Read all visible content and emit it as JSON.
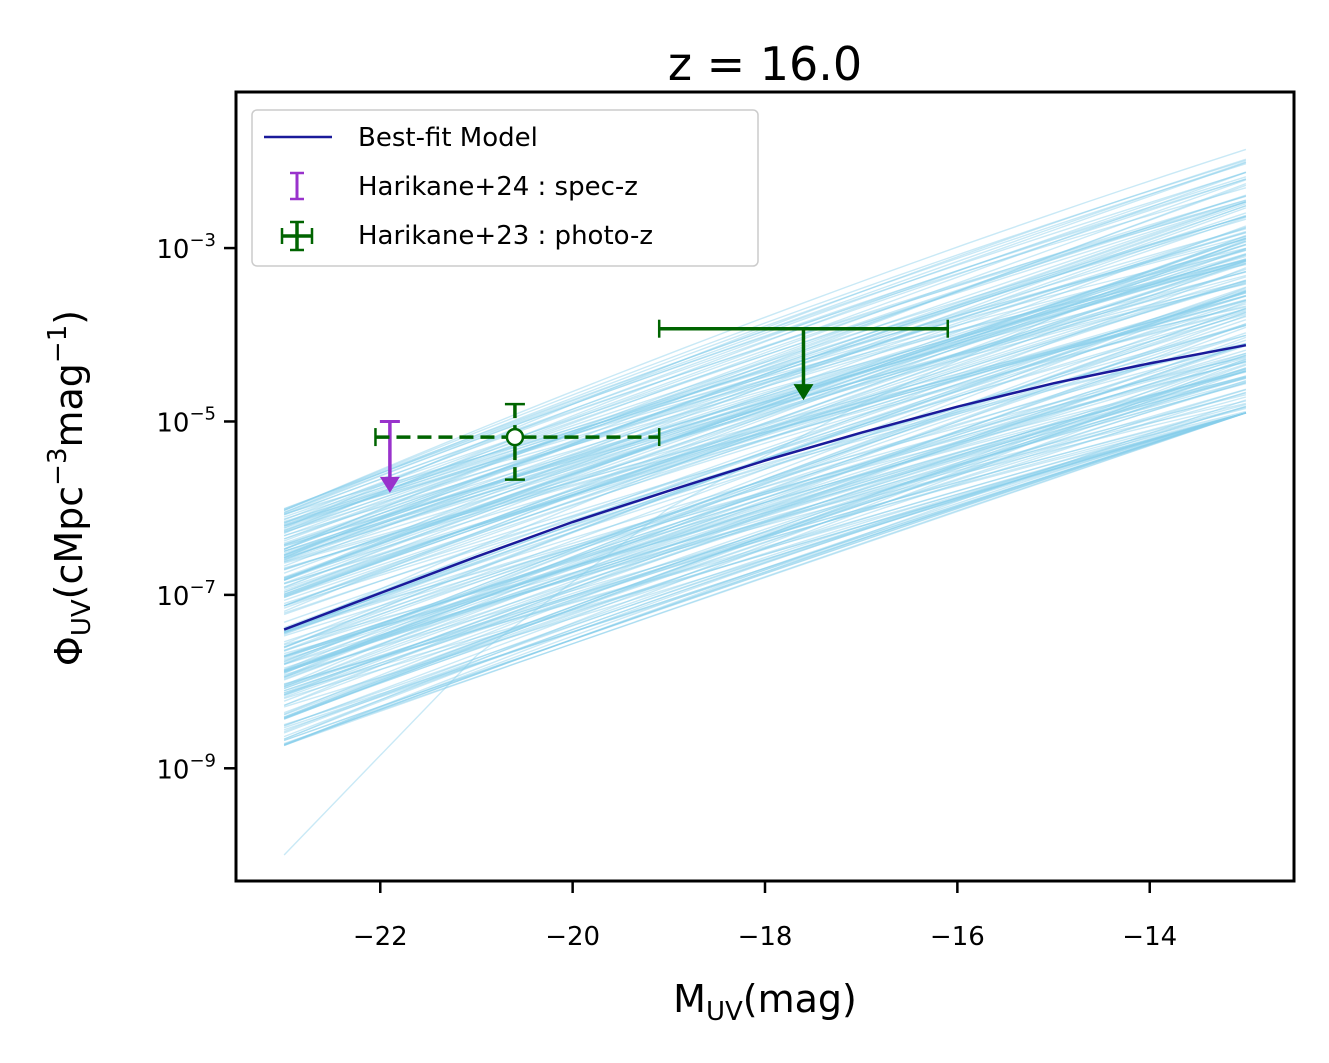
{
  "chart_data": {
    "type": "line",
    "title": "z = 16.0",
    "xlabel": {
      "main": "M",
      "sub": "UV",
      "rest": "(mag)"
    },
    "ylabel": {
      "main": "Φ",
      "sub": "UV",
      "rest": "(cMpc",
      "sup1": "−3",
      "mid": "mag",
      "sup2": "−1",
      "end": ")"
    },
    "xlim": [
      -23.5,
      -12.5
    ],
    "ylim_log10": [
      -10.3,
      -1.2
    ],
    "yscale": "log",
    "x_ticks": [
      {
        "value": -22,
        "label": "−22"
      },
      {
        "value": -20,
        "label": "−20"
      },
      {
        "value": -18,
        "label": "−18"
      },
      {
        "value": -16,
        "label": "−16"
      },
      {
        "value": -14,
        "label": "−14"
      }
    ],
    "y_ticks": [
      {
        "log10": -3,
        "base": "10",
        "exp": "−3"
      },
      {
        "log10": -5,
        "base": "10",
        "exp": "−5"
      },
      {
        "log10": -7,
        "base": "10",
        "exp": "−7"
      },
      {
        "log10": -9,
        "base": "10",
        "exp": "−9"
      }
    ],
    "best_fit": {
      "name": "Best-fit Model",
      "color": "#1a1a9a",
      "x": [
        -23,
        -22,
        -21,
        -20,
        -19,
        -18,
        -17,
        -16,
        -15,
        -14,
        -13
      ],
      "log10_y": [
        -7.4,
        -6.98,
        -6.56,
        -6.16,
        -5.8,
        -5.45,
        -5.13,
        -4.83,
        -4.56,
        -4.33,
        -4.12
      ]
    },
    "posterior_samples": {
      "color": "#87ceeb",
      "count": 220,
      "x_range": [
        -23,
        -13
      ],
      "log10_y_at_start_range": [
        -8.75,
        -6.0
      ],
      "log10_y_at_end_range": [
        -4.9,
        -1.65
      ],
      "outlier_curve": {
        "x": [
          -23,
          -21,
          -19,
          -17,
          -15,
          -13
        ],
        "log10_y": [
          -10.0,
          -7.7,
          -6.0,
          -4.8,
          -3.8,
          -2.9
        ]
      }
    },
    "observations": [
      {
        "name": "Harikane+24 : spec-z",
        "color": "#9932cc",
        "kind": "upper_limit",
        "x": -21.9,
        "log10_y": -5.0,
        "log10_arrow_to": -5.8
      },
      {
        "name": "Harikane+23 :  photo-z",
        "color": "#006400",
        "points": [
          {
            "kind": "detection",
            "x": -20.6,
            "log10_y": -5.18,
            "x_err_low": 1.45,
            "x_err_high": 1.5,
            "log10_y_low": -5.67,
            "log10_y_high": -4.8,
            "dashed": true,
            "open_marker": true
          },
          {
            "kind": "upper_limit",
            "x": -17.6,
            "log10_y": -3.93,
            "x_err_low": 1.5,
            "x_err_high": 1.5,
            "log10_arrow_to": -4.73
          }
        ]
      }
    ],
    "legend": {
      "position": "top-left",
      "entries": [
        "Best-fit Model",
        "Harikane+24 : spec-z",
        "Harikane+23 :  photo-z"
      ]
    }
  }
}
